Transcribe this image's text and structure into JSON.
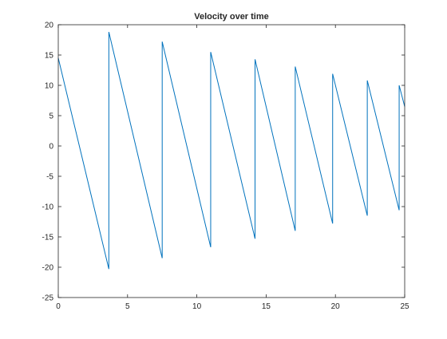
{
  "chart_data": {
    "type": "line",
    "title": "Velocity over time",
    "xlabel": "",
    "ylabel": "",
    "xlim": [
      0,
      25
    ],
    "ylim": [
      -25,
      20
    ],
    "xticks": [
      "0",
      "5",
      "10",
      "15",
      "20",
      "25"
    ],
    "yticks": [
      "20",
      "15",
      "10",
      "5",
      "0",
      "-5",
      "-10",
      "-15",
      "-20",
      "-25"
    ],
    "grid": false,
    "legend": "none",
    "series": [
      {
        "color": "#0072BD",
        "x": [
          0,
          3.65,
          3.65,
          7.5,
          7.5,
          11.0,
          11.0,
          14.2,
          14.2,
          17.1,
          17.1,
          19.8,
          19.8,
          22.3,
          22.3,
          24.6,
          24.6,
          25.0
        ],
        "y": [
          14.5,
          -20.3,
          18.8,
          -18.5,
          17.2,
          -16.7,
          15.5,
          -15.3,
          14.3,
          -14.0,
          13.1,
          -12.8,
          11.9,
          -11.5,
          10.8,
          -10.6,
          10.0,
          6.5
        ]
      }
    ]
  }
}
